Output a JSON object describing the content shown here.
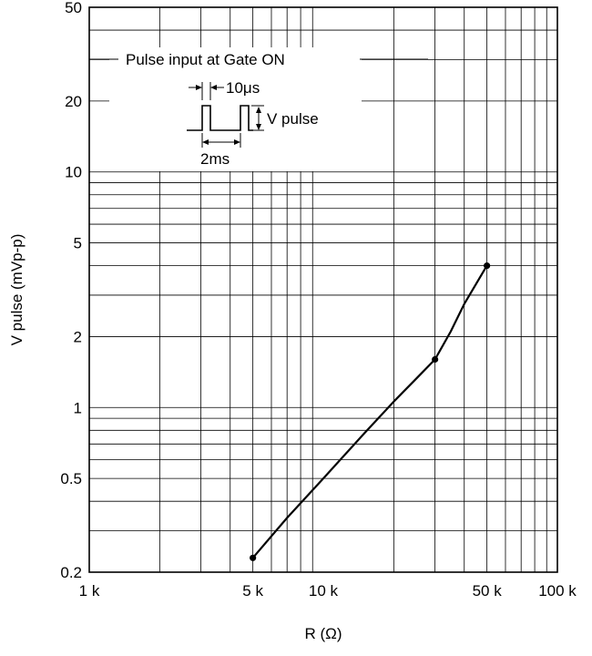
{
  "chart_data": {
    "type": "line",
    "title": "",
    "xlabel": "R  (Ω)",
    "ylabel": "V pulse (mVp-p)",
    "x_scale": "log",
    "y_scale": "log",
    "xlim": [
      1000,
      100000
    ],
    "ylim": [
      0.2,
      50
    ],
    "x_ticks": [
      {
        "value": 1000,
        "label": "1 k"
      },
      {
        "value": 5000,
        "label": "5 k"
      },
      {
        "value": 10000,
        "label": "10 k"
      },
      {
        "value": 50000,
        "label": "50 k"
      },
      {
        "value": 100000,
        "label": "100 k"
      }
    ],
    "y_ticks": [
      {
        "value": 0.2,
        "label": "0.2"
      },
      {
        "value": 0.5,
        "label": "0.5"
      },
      {
        "value": 1,
        "label": "1"
      },
      {
        "value": 2,
        "label": "2"
      },
      {
        "value": 5,
        "label": "5"
      },
      {
        "value": 10,
        "label": "10"
      },
      {
        "value": 20,
        "label": "20"
      },
      {
        "value": 50,
        "label": "50"
      }
    ],
    "grid": true,
    "series": [
      {
        "x": [
          5000,
          7000,
          10000,
          15000,
          20000,
          25000,
          30000,
          35000,
          40000,
          50000
        ],
        "y": [
          0.23,
          0.34,
          0.5,
          0.78,
          1.06,
          1.33,
          1.6,
          2.1,
          2.75,
          4.0
        ]
      }
    ],
    "markers": [
      {
        "x": 5000,
        "y": 0.23
      },
      {
        "x": 30000,
        "y": 1.6
      },
      {
        "x": 50000,
        "y": 4.0
      }
    ],
    "inset": {
      "title": "Pulse input at Gate ON",
      "width_label": "10μs",
      "amplitude_label": "V pulse",
      "period_label": "2ms"
    }
  }
}
